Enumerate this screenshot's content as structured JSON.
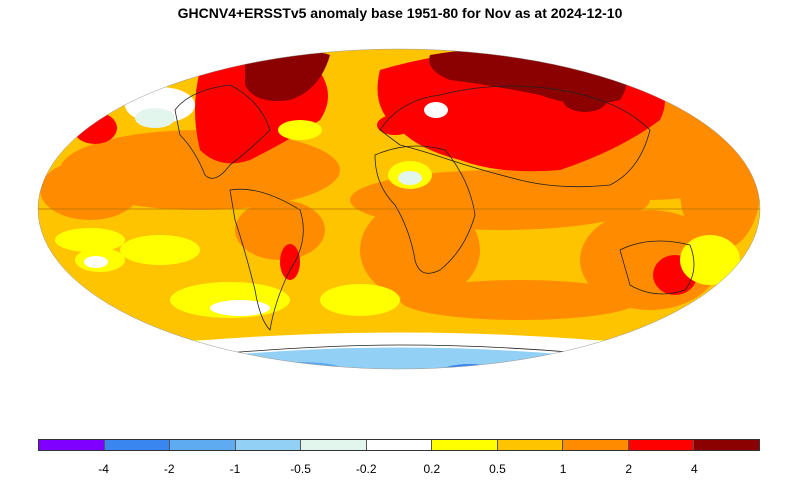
{
  "title": "GHCNV4+ERSSTv5 anomaly base 1951-80 for Nov as at 2024-12-10",
  "legend": {
    "colors": [
      "#7f00ff",
      "#3a86f0",
      "#5eabf2",
      "#93d0f5",
      "#e3f6ee",
      "#ffffff",
      "#ffff00",
      "#ffc400",
      "#ff8c00",
      "#ff0000",
      "#8b0000"
    ],
    "tick_labels": [
      "-4",
      "-2",
      "-1",
      "-0.5",
      "-0.2",
      "0.2",
      "0.5",
      "1",
      "2",
      "4"
    ]
  }
}
